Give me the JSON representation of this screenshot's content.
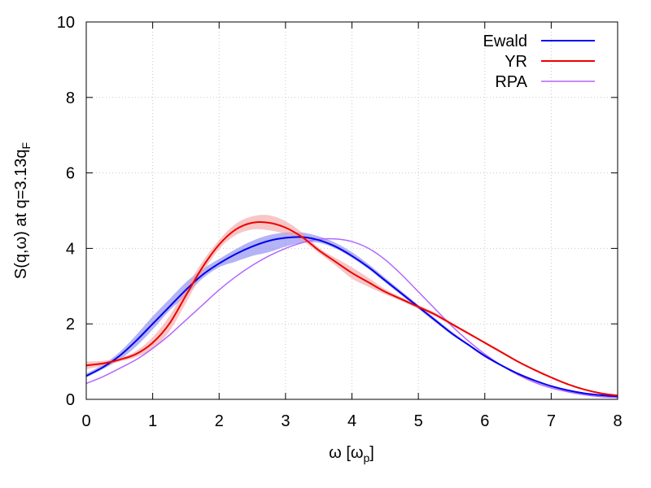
{
  "chart_data": {
    "type": "line",
    "title": "",
    "xlabel": "ω [ω",
    "xlabel_sub": "p",
    "xlabel_close": "]",
    "ylabel": "S(q,ω) at q=3.13q",
    "ylabel_sub": "F",
    "xlim": [
      0,
      8
    ],
    "ylim": [
      0,
      10
    ],
    "xticks": [
      "0",
      "1",
      "2",
      "3",
      "4",
      "5",
      "6",
      "7",
      "8"
    ],
    "yticks": [
      "0",
      "2",
      "4",
      "6",
      "8",
      "10"
    ],
    "grid": true,
    "legend_position": "top-right",
    "series": [
      {
        "name": "Ewald",
        "color": "#0000ee",
        "band_color": "#8080f0",
        "x": [
          0.0,
          0.25,
          0.5,
          0.75,
          1.0,
          1.25,
          1.5,
          1.75,
          2.0,
          2.25,
          2.5,
          2.75,
          3.0,
          3.25,
          3.5,
          3.75,
          4.0,
          4.25,
          4.5,
          4.75,
          5.0,
          5.25,
          5.5,
          5.75,
          6.0,
          6.25,
          6.5,
          6.75,
          7.0,
          7.25,
          7.5,
          7.75,
          8.0
        ],
        "y": [
          0.62,
          0.85,
          1.15,
          1.55,
          2.0,
          2.45,
          2.9,
          3.3,
          3.6,
          3.85,
          4.05,
          4.2,
          4.28,
          4.3,
          4.22,
          4.05,
          3.8,
          3.5,
          3.15,
          2.8,
          2.45,
          2.1,
          1.75,
          1.45,
          1.15,
          0.9,
          0.68,
          0.5,
          0.35,
          0.24,
          0.16,
          0.11,
          0.08
        ],
        "lower": [
          0.58,
          0.8,
          1.05,
          1.4,
          1.85,
          2.35,
          2.75,
          3.2,
          3.5,
          3.65,
          3.8,
          3.9,
          4.05,
          4.15,
          4.15,
          4.0,
          3.75,
          3.45,
          3.1,
          2.75,
          2.4,
          2.05,
          1.72,
          1.42,
          1.12,
          0.88,
          0.66,
          0.48,
          0.34,
          0.23,
          0.15,
          0.1,
          0.07
        ],
        "upper": [
          0.68,
          0.92,
          1.25,
          1.7,
          2.2,
          2.65,
          3.1,
          3.45,
          3.72,
          3.98,
          4.2,
          4.35,
          4.42,
          4.42,
          4.32,
          4.15,
          3.9,
          3.58,
          3.22,
          2.86,
          2.5,
          2.15,
          1.8,
          1.48,
          1.18,
          0.92,
          0.7,
          0.52,
          0.36,
          0.25,
          0.17,
          0.12,
          0.09
        ]
      },
      {
        "name": "YR",
        "color": "#ee0000",
        "band_color": "#f4a0a0",
        "x": [
          0.0,
          0.25,
          0.5,
          0.75,
          1.0,
          1.25,
          1.5,
          1.75,
          2.0,
          2.25,
          2.5,
          2.75,
          3.0,
          3.25,
          3.5,
          3.75,
          4.0,
          4.25,
          4.5,
          4.75,
          5.0,
          5.25,
          5.5,
          5.75,
          6.0,
          6.25,
          6.5,
          6.75,
          7.0,
          7.25,
          7.5,
          7.75,
          8.0
        ],
        "y": [
          0.9,
          0.95,
          1.05,
          1.2,
          1.5,
          2.0,
          2.75,
          3.5,
          4.1,
          4.5,
          4.68,
          4.68,
          4.55,
          4.3,
          3.95,
          3.65,
          3.35,
          3.1,
          2.85,
          2.65,
          2.45,
          2.25,
          2.0,
          1.75,
          1.5,
          1.25,
          1.0,
          0.78,
          0.58,
          0.4,
          0.26,
          0.16,
          0.1
        ],
        "lower": [
          0.8,
          0.88,
          1.0,
          1.12,
          1.35,
          1.8,
          2.55,
          3.35,
          3.98,
          4.35,
          4.5,
          4.48,
          4.38,
          4.2,
          3.88,
          3.55,
          3.2,
          2.98,
          2.78,
          2.6,
          2.4,
          2.2,
          1.96,
          1.72,
          1.47,
          1.22,
          0.98,
          0.76,
          0.56,
          0.39,
          0.25,
          0.15,
          0.09
        ],
        "upper": [
          1.0,
          1.02,
          1.1,
          1.28,
          1.65,
          2.2,
          2.95,
          3.65,
          4.22,
          4.65,
          4.85,
          4.88,
          4.72,
          4.42,
          4.02,
          3.75,
          3.5,
          3.22,
          2.92,
          2.7,
          2.5,
          2.3,
          2.04,
          1.78,
          1.53,
          1.28,
          1.02,
          0.8,
          0.6,
          0.41,
          0.27,
          0.17,
          0.11
        ]
      },
      {
        "name": "RPA",
        "color": "#b266ff",
        "x": [
          0.0,
          0.25,
          0.5,
          0.75,
          1.0,
          1.25,
          1.5,
          1.75,
          2.0,
          2.25,
          2.5,
          2.75,
          3.0,
          3.25,
          3.5,
          3.75,
          4.0,
          4.25,
          4.5,
          4.75,
          5.0,
          5.25,
          5.5,
          5.75,
          6.0,
          6.25,
          6.5,
          6.75,
          7.0,
          7.25,
          7.5,
          7.75,
          8.0
        ],
        "y": [
          0.42,
          0.6,
          0.82,
          1.05,
          1.35,
          1.7,
          2.1,
          2.5,
          2.9,
          3.25,
          3.55,
          3.8,
          4.0,
          4.15,
          4.24,
          4.25,
          4.18,
          4.0,
          3.7,
          3.3,
          2.85,
          2.4,
          1.95,
          1.55,
          1.2,
          0.9,
          0.65,
          0.45,
          0.3,
          0.2,
          0.12,
          0.07,
          0.05
        ]
      }
    ]
  }
}
